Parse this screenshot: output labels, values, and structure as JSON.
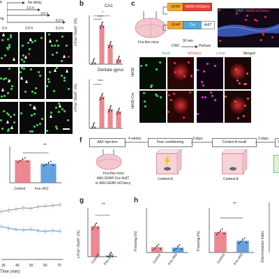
{
  "panel_labels": {
    "b": "b",
    "c": "c",
    "f": "f",
    "g": "g",
    "h": "h"
  },
  "panel_a": {
    "timeline": [
      "No delay",
      "1.5 h",
      "3.0 h",
      "6.0 h"
    ],
    "timeline_fragments": [
      "g",
      "ng"
    ],
    "col_titles": [
      ".5 h",
      "3.0 h",
      "6.0 h"
    ]
  },
  "panel_b": {
    "top_title": "CA1",
    "bottom_title": "Dentate gyrus",
    "ylabel": "c-Fos⁺/Sox9⁺ (%)",
    "sig_top_1": "*",
    "sig_top_2": "****",
    "sig_bottom": "****"
  },
  "panel_c": {
    "construct1_promoter": "GFAP",
    "construct1_gene": "hM3D-mCherry",
    "construct2_promoter": "GFAP",
    "construct2_gene": "Cre",
    "construct2_tag": "4x6T",
    "mouse_label": "Fos-flox mice",
    "protocol_time": "90 min",
    "protocol_cno": "CNO",
    "protocol_perfuse": "Perfuse",
    "legend_dapi": "DAPI",
    "legend_hm3d": "hM3D-mCherry",
    "col_headers": [
      "Sox9",
      "mCherry",
      "c-Fos",
      "Merged"
    ],
    "row_labels": [
      "hM3D",
      "hM3D-Cre"
    ]
  },
  "panel_e": {
    "sig": "**",
    "categories": [
      "Control",
      "Fos cKO"
    ],
    "x_ticks": [
      "30",
      "40",
      "50",
      "60",
      "70"
    ],
    "xlabel": "Time (min)"
  },
  "panel_f": {
    "steps": [
      "AAV injection",
      "Fear conditioning",
      "Context A recall"
    ],
    "intervals": [
      "4 weeks",
      "3 days",
      "3 days"
    ],
    "cut_label": "N",
    "mouse_lines": [
      "Fos-flox mice",
      "AAV-GFAP-Cre-4x6T",
      "or AAV-GFAP-mCherry"
    ],
    "context_labels": [
      "Context A",
      "Context A"
    ]
  },
  "panel_g": {
    "ylabel": "c-Fos⁺/Sox9⁺ (%)",
    "sig": "**",
    "categories": [
      "Control",
      "Fos cKO"
    ]
  },
  "panel_h": {
    "ylabel1": "Freezing (%)",
    "ylabel2": "Freezing (%)",
    "ylabel3": "Discrimination index",
    "sig": "**",
    "categories": [
      "Control",
      "Fos cKO"
    ]
  },
  "colors": {
    "control": "#e8737f",
    "cko": "#4a90d9",
    "neg": "#bdbdbd"
  },
  "chart_data": [
    {
      "id": "b-top",
      "type": "bar",
      "title": "CA1",
      "categories": [
        "HC",
        "1.5 h",
        "3.0 h",
        "6.0 h"
      ],
      "values": [
        0.2,
        3.2,
        1.6,
        0.4
      ],
      "ylim": [
        0,
        4
      ]
    },
    {
      "id": "b-bottom",
      "type": "bar",
      "title": "Dentate gyrus",
      "categories": [
        "HC",
        "1.5 h",
        "3.0 h",
        "6.0 h"
      ],
      "values": [
        0.2,
        2.6,
        1.6,
        1.4
      ],
      "ylim": [
        0,
        4
      ]
    },
    {
      "id": "e-bar",
      "type": "bar",
      "categories": [
        "Control",
        "Fos cKO"
      ],
      "values": [
        125,
        105
      ],
      "ylim": [
        0,
        200
      ]
    },
    {
      "id": "e-line",
      "type": "line",
      "x": [
        30,
        35,
        40,
        45,
        50,
        55,
        60,
        65,
        70
      ],
      "series": [
        {
          "values": [
            80,
            82,
            84,
            86,
            85,
            88,
            89,
            90,
            91
          ]
        },
        {
          "values": [
            55,
            52,
            50,
            49,
            50,
            48,
            47,
            48,
            47
          ]
        }
      ],
      "ylim": [
        0,
        100
      ]
    },
    {
      "id": "g",
      "type": "bar",
      "categories": [
        "Control",
        "Fos cKO"
      ],
      "values": [
        2.5,
        0.1
      ],
      "ylim": [
        0,
        4
      ]
    },
    {
      "id": "h1",
      "type": "bar",
      "categories": [
        "Control",
        "Fos cKO"
      ],
      "values": [
        12,
        11
      ],
      "ylim": [
        0,
        100
      ]
    },
    {
      "id": "h2",
      "type": "bar",
      "categories": [
        "Control",
        "Fos cKO"
      ],
      "values": [
        37,
        21
      ],
      "ylim": [
        0,
        80
      ]
    }
  ]
}
